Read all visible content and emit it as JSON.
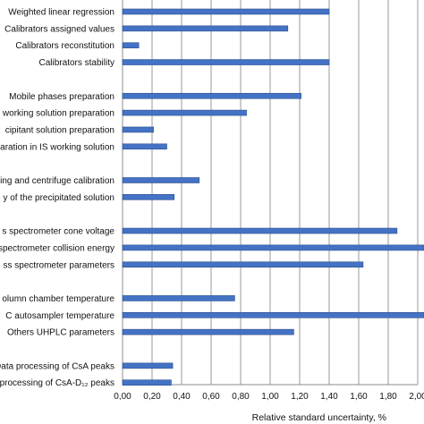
{
  "chart_data": {
    "type": "bar",
    "orientation": "horizontal",
    "xlabel": "Relative standard uncertainty, %",
    "xlim": [
      0,
      2.0
    ],
    "x_ticks": [
      "0,00",
      "0,20",
      "0,40",
      "0,60",
      "0,80",
      "1,00",
      "1,20",
      "1,40",
      "1,60",
      "1,80",
      "2,00"
    ],
    "grid": "vertical",
    "bar_color": "#4472c4",
    "categories": [
      {
        "label": "Weighted linear regression",
        "value": 1.4
      },
      {
        "label": "Calibrators assigned values",
        "value": 1.12
      },
      {
        "label": "Calibrators reconstitution",
        "value": 0.11
      },
      {
        "label": "Calibrators stability",
        "value": 1.4
      },
      {
        "label": "",
        "value": null
      },
      {
        "label": "Mobile phases preparation",
        "value": 1.21
      },
      {
        "label": "working solution preparation",
        "value": 0.84
      },
      {
        "label": "cipitant solution preparation",
        "value": 0.21
      },
      {
        "label": "aration in IS working solution",
        "value": 0.3
      },
      {
        "label": "",
        "value": null
      },
      {
        "label": "ing and centrifuge calibration",
        "value": 0.52
      },
      {
        "label": "y of the precipitated solution",
        "value": 0.35
      },
      {
        "label": "",
        "value": null
      },
      {
        "label": "s spectrometer cone voltage",
        "value": 1.86
      },
      {
        "label": "spectrometer collision energy",
        "value": 2.3
      },
      {
        "label": "ss spectrometer parameters",
        "value": 1.63
      },
      {
        "label": "",
        "value": null
      },
      {
        "label": "olumn chamber temperature",
        "value": 0.76
      },
      {
        "label": "C autosampler temperature",
        "value": 2.3
      },
      {
        "label": "Others UHPLC parameters",
        "value": 1.16
      },
      {
        "label": "",
        "value": null
      },
      {
        "label": "Data processing of CsA peaks",
        "value": 0.34
      },
      {
        "label": "processing of CsA-D₁₂ peaks",
        "value": 0.33
      }
    ]
  }
}
